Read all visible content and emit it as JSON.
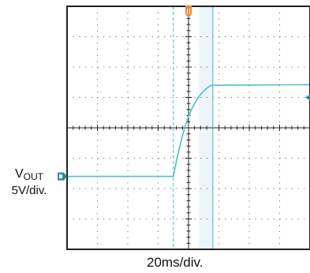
{
  "chart_data": {
    "type": "line",
    "title": "",
    "time_scale": "20ms/div.",
    "channel": {
      "name_main": "V",
      "name_sub": "OUT",
      "scale": "5V/div.",
      "color": "#4dbfca"
    },
    "divisions": {
      "x": 8,
      "y": 8
    },
    "xlim": [
      -80,
      80
    ],
    "xunit": "ms",
    "ylim": [
      -20,
      20
    ],
    "yunit": "V",
    "grid": true,
    "series": [
      {
        "x": [
          -80,
          -10,
          -8,
          -6,
          -4,
          -2,
          0,
          2,
          4,
          6,
          8,
          10,
          12,
          14,
          16,
          80
        ],
        "y": [
          -8.0,
          -8.0,
          -5.5,
          -3.3,
          -1.3,
          0.5,
          1.9,
          3.0,
          4.0,
          4.8,
          5.5,
          6.1,
          6.5,
          6.9,
          7.0,
          7.1
        ]
      }
    ],
    "cursors": {
      "x": [
        -10,
        16
      ],
      "color": "#4dbfca"
    },
    "trigger_marker_color": "#e58a2e",
    "ground_marker": {
      "y": -8,
      "color": "#2a8f9c"
    },
    "trigger_level_marker": {
      "y": 5,
      "color": "#2a8f9c"
    }
  }
}
